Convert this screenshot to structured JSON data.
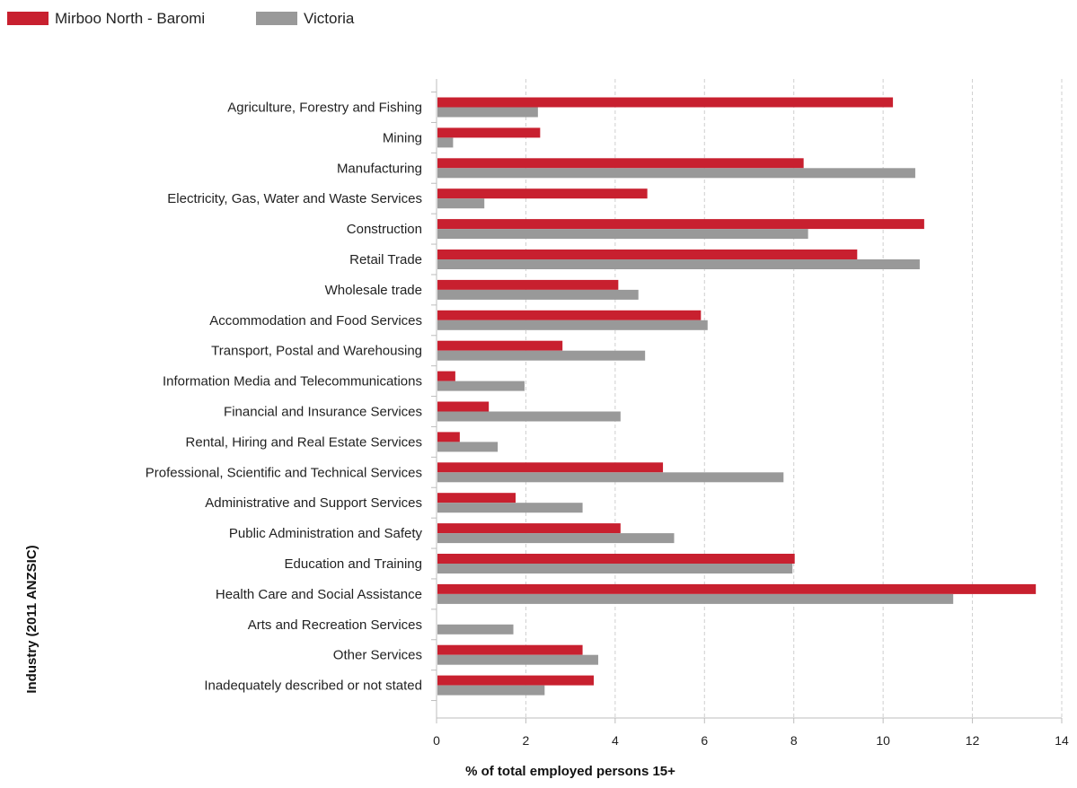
{
  "chart_data": {
    "type": "bar",
    "orientation": "horizontal",
    "xlabel": "% of total employed persons 15+",
    "ylabel": "Industry (2011 ANZSIC)",
    "xlim": [
      0,
      14
    ],
    "xticks": [
      0,
      2,
      4,
      6,
      8,
      10,
      12,
      14
    ],
    "grid": true,
    "legend": "top-left",
    "categories": [
      "Agriculture, Forestry and Fishing",
      "Mining",
      "Manufacturing",
      "Electricity, Gas, Water and Waste Services",
      "Construction",
      "Retail Trade",
      "Wholesale trade",
      "Accommodation and Food Services",
      "Transport, Postal and Warehousing",
      "Information Media and Telecommunications",
      "Financial and Insurance Services",
      "Rental, Hiring and Real Estate Services",
      "Professional, Scientific and Technical Services",
      "Administrative and Support Services",
      "Public Administration and Safety",
      "Education and Training",
      "Health Care and Social Assistance",
      "Arts and Recreation Services",
      "Other Services",
      "Inadequately described or not stated"
    ],
    "series": [
      {
        "name": "Mirboo North - Baromi",
        "color": "#c8202f",
        "values": [
          10.2,
          2.3,
          8.2,
          4.7,
          10.9,
          9.4,
          4.05,
          5.9,
          2.8,
          0.4,
          1.15,
          0.5,
          5.05,
          1.75,
          4.1,
          8.0,
          13.4,
          0.0,
          3.25,
          3.5
        ]
      },
      {
        "name": "Victoria",
        "color": "#999999",
        "values": [
          2.25,
          0.35,
          10.7,
          1.05,
          8.3,
          10.8,
          4.5,
          6.05,
          4.65,
          1.95,
          4.1,
          1.35,
          7.75,
          3.25,
          5.3,
          7.95,
          11.55,
          1.7,
          3.6,
          2.4
        ]
      }
    ]
  }
}
